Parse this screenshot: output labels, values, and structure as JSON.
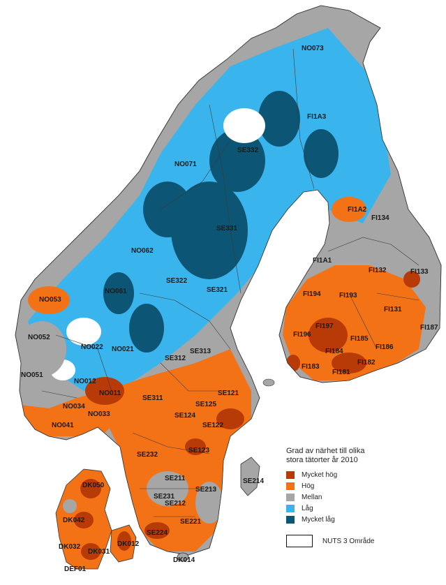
{
  "legend": {
    "title_line1": "Grad av närhet till olika",
    "title_line2": "stora tätorter år 2010",
    "items": [
      {
        "label": "Mycket hög",
        "color": "#b83a06"
      },
      {
        "label": "Hög",
        "color": "#f47216"
      },
      {
        "label": "Mellan",
        "color": "#a6a6a6"
      },
      {
        "label": "Låg",
        "color": "#3ab4ec"
      },
      {
        "label": "Mycket låg",
        "color": "#0c5575"
      }
    ],
    "nuts_label": "NUTS 3 Område"
  },
  "regions": [
    {
      "code": "NO073"
    },
    {
      "code": "SE332"
    },
    {
      "code": "FI1A3"
    },
    {
      "code": "NO071"
    },
    {
      "code": "FI1A2"
    },
    {
      "code": "FI134"
    },
    {
      "code": "SE331"
    },
    {
      "code": "NO062"
    },
    {
      "code": "FI1A1"
    },
    {
      "code": "FI132"
    },
    {
      "code": "FI133"
    },
    {
      "code": "SE322"
    },
    {
      "code": "SE321"
    },
    {
      "code": "NO061"
    },
    {
      "code": "FI194"
    },
    {
      "code": "FI193"
    },
    {
      "code": "FI131"
    },
    {
      "code": "NO053"
    },
    {
      "code": "FI197"
    },
    {
      "code": "FI187"
    },
    {
      "code": "NO052"
    },
    {
      "code": "NO022"
    },
    {
      "code": "NO021"
    },
    {
      "code": "SE313"
    },
    {
      "code": "FI196"
    },
    {
      "code": "FI185"
    },
    {
      "code": "FI186"
    },
    {
      "code": "SE312"
    },
    {
      "code": "FI184"
    },
    {
      "code": "FI183"
    },
    {
      "code": "FI182"
    },
    {
      "code": "FI181"
    },
    {
      "code": "NO051"
    },
    {
      "code": "NO012"
    },
    {
      "code": "NO011"
    },
    {
      "code": "SE311"
    },
    {
      "code": "SE121"
    },
    {
      "code": "SE125"
    },
    {
      "code": "NO034"
    },
    {
      "code": "NO033"
    },
    {
      "code": "SE124"
    },
    {
      "code": "SE122"
    },
    {
      "code": "SE123"
    },
    {
      "code": "NO041"
    },
    {
      "code": "SE232"
    },
    {
      "code": "SE211"
    },
    {
      "code": "SE214"
    },
    {
      "code": "DK050"
    },
    {
      "code": "SE231"
    },
    {
      "code": "SE213"
    },
    {
      "code": "SE212"
    },
    {
      "code": "DK042"
    },
    {
      "code": "SE221"
    },
    {
      "code": "SE224"
    },
    {
      "code": "DK032"
    },
    {
      "code": "DK031"
    },
    {
      "code": "DK012"
    },
    {
      "code": "DK014"
    },
    {
      "code": "DEF01"
    }
  ]
}
